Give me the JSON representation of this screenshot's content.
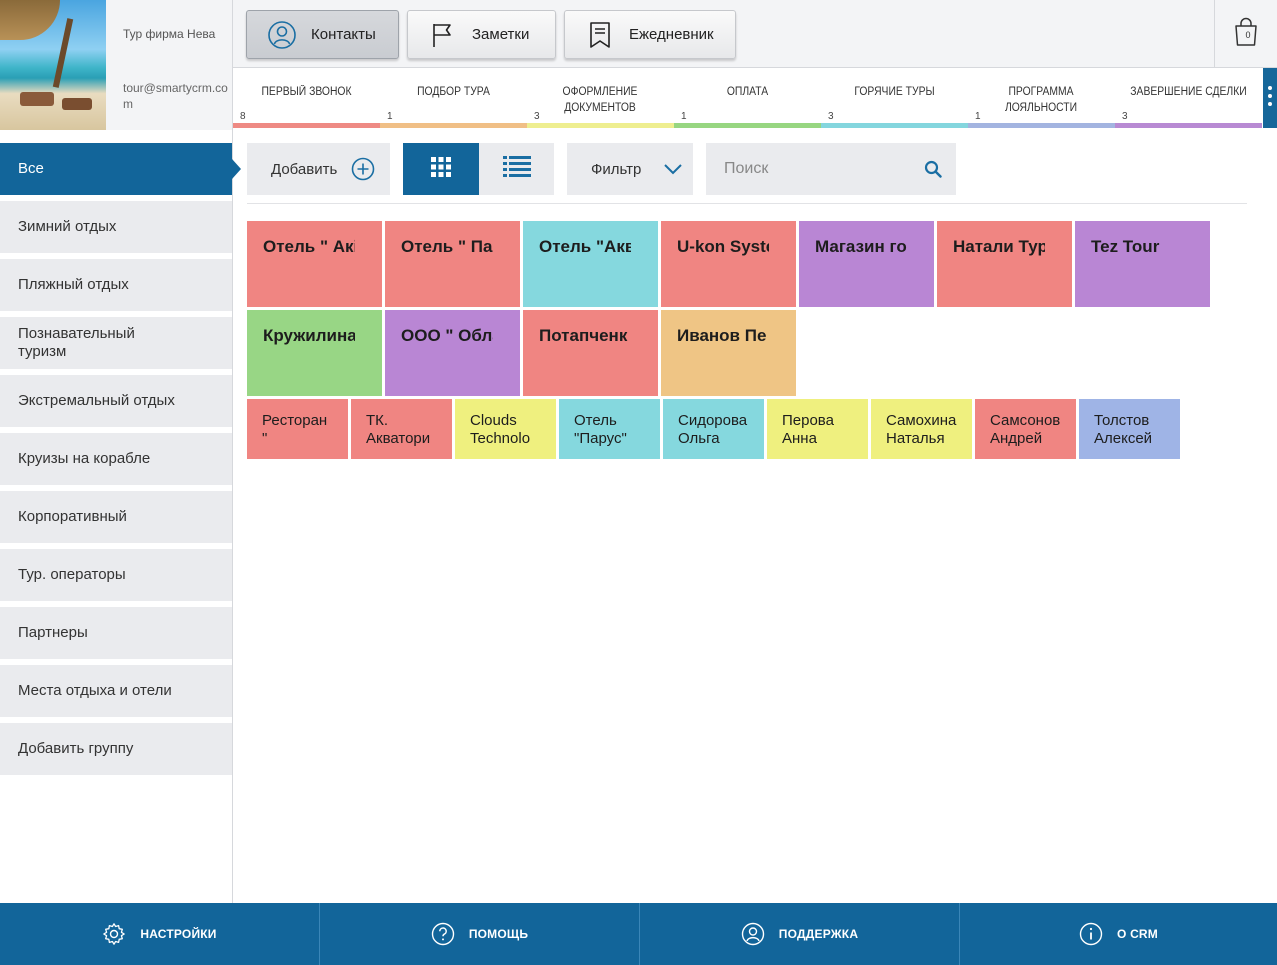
{
  "brand": {
    "company": "Тур фирма Нева",
    "email": "tour@smartycrm.com"
  },
  "top_tabs": [
    {
      "label": "Контакты",
      "icon": "user-icon",
      "active": true
    },
    {
      "label": "Заметки",
      "icon": "flag-icon",
      "active": false
    },
    {
      "label": "Ежедневник",
      "icon": "bookmark-icon",
      "active": false
    }
  ],
  "cart": {
    "count": "0",
    "icon": "shopping-bag-icon"
  },
  "stages": [
    {
      "label": "Первый звонок",
      "count": "8",
      "color": "#ee8a84"
    },
    {
      "label": "Подбор тура",
      "count": "1",
      "color": "#f0bf86"
    },
    {
      "label": "Оформление документов",
      "count": "3",
      "color": "#eeee90"
    },
    {
      "label": "Оплата",
      "count": "1",
      "color": "#97d681"
    },
    {
      "label": "Горячие туры",
      "count": "3",
      "color": "#84d6de"
    },
    {
      "label": "Программа лояльности",
      "count": "1",
      "color": "#a3b4e0"
    },
    {
      "label": "Завершение сделки",
      "count": "3",
      "color": "#b88ad3"
    }
  ],
  "sidebar": {
    "items": [
      {
        "label": "Все",
        "active": true
      },
      {
        "label": "Зимний отдых",
        "active": false
      },
      {
        "label": "Пляжный отдых",
        "active": false
      },
      {
        "label": "Познавательный туризм",
        "active": false
      },
      {
        "label": "Экстремальный отдых",
        "active": false
      },
      {
        "label": "Круизы на корабле",
        "active": false
      },
      {
        "label": "Корпоративный",
        "active": false
      },
      {
        "label": "Тур. операторы",
        "active": false
      },
      {
        "label": "Партнеры",
        "active": false
      },
      {
        "label": "Места отдыха и отели",
        "active": false
      },
      {
        "label": "Добавить группу",
        "active": false
      }
    ]
  },
  "toolbar": {
    "add_label": "Добавить",
    "filter_label": "Фильтр",
    "search_placeholder": "Поиск"
  },
  "cards_big": [
    {
      "text": "Отель \" Акі",
      "color": "#f08582"
    },
    {
      "text": "Отель \" Пар",
      "color": "#f08582"
    },
    {
      "text": "Отель \"Акв",
      "color": "#85d8de"
    },
    {
      "text": "U-kon Syste",
      "color": "#f08582"
    },
    {
      "text": "Магазин го",
      "color": "#b986d4"
    },
    {
      "text": "Натали Тур",
      "color": "#f08582"
    },
    {
      "text": "Tez Tour",
      "color": "#b986d4"
    },
    {
      "text": "Кружилина",
      "color": "#98d685"
    },
    {
      "text": "ООО \" Обла",
      "color": "#b986d4"
    },
    {
      "text": "Потапченк",
      "color": "#f08582"
    },
    {
      "text": "Иванов Пе",
      "color": "#efc585"
    }
  ],
  "cards_small": [
    {
      "line1": "Ресторан",
      "line2": "\"",
      "color": "#f08582"
    },
    {
      "line1": "ТК.",
      "line2": "Акватори",
      "color": "#f08582"
    },
    {
      "line1": "Clouds",
      "line2": "Technolo",
      "color": "#eff07f"
    },
    {
      "line1": "Отель",
      "line2": "\"Парус\"",
      "color": "#85d8de"
    },
    {
      "line1": "Сидорова",
      "line2": "Ольга",
      "color": "#85d8de"
    },
    {
      "line1": "Перова",
      "line2": "Анна",
      "color": "#eff07f"
    },
    {
      "line1": "Самохина",
      "line2": "Наталья",
      "color": "#eff07f"
    },
    {
      "line1": "Самсонов",
      "line2": "Андрей",
      "color": "#f08582"
    },
    {
      "line1": "Толстов",
      "line2": "Алексей",
      "color": "#9fb4e6"
    }
  ],
  "footer": [
    {
      "label": "НАСТРОЙКИ",
      "icon": "gear-icon"
    },
    {
      "label": "ПОМОЩЬ",
      "icon": "help-icon"
    },
    {
      "label": "ПОДДЕРЖКА",
      "icon": "support-icon"
    },
    {
      "label": "О CRM",
      "icon": "info-icon"
    }
  ]
}
